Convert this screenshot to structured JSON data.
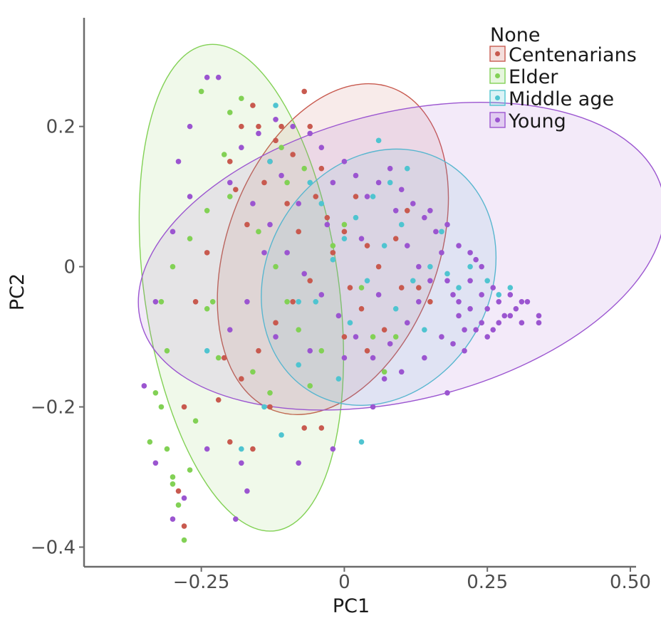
{
  "chart_data": {
    "type": "scatter",
    "xlabel": "PC1",
    "ylabel": "PC2",
    "xlim": [
      -0.455,
      0.51
    ],
    "ylim": [
      -0.428,
      0.355
    ],
    "xticks": [
      -0.25,
      0,
      0.25,
      0.5
    ],
    "xtick_labels": [
      "−0.25",
      "0",
      "0.25",
      "0.50"
    ],
    "yticks": [
      -0.4,
      -0.2,
      0,
      0.2
    ],
    "ytick_labels": [
      "−0.4",
      "−0.2",
      "0",
      "0.2"
    ],
    "grid": false,
    "legend": {
      "title": "None",
      "placement": "top-right",
      "entries": [
        "Centenarians",
        "Elder",
        "Middle age",
        "Young"
      ]
    },
    "series": [
      {
        "name": "Centenarians",
        "color": "#c85a4f",
        "ellipse": {
          "center": [
            -0.02,
            0.025
          ],
          "semi_axes": [
            0.185,
            0.245
          ],
          "angle_deg": 20
        },
        "points": [
          [
            -0.2,
            0.15
          ],
          [
            -0.18,
            0.2
          ],
          [
            -0.16,
            0.23
          ],
          [
            -0.12,
            0.18
          ],
          [
            -0.14,
            0.12
          ],
          [
            -0.1,
            0.09
          ],
          [
            -0.08,
            0.05
          ],
          [
            -0.05,
            0.1
          ],
          [
            -0.03,
            0.07
          ],
          [
            0.0,
            0.05
          ],
          [
            0.02,
            0.1
          ],
          [
            0.04,
            0.03
          ],
          [
            -0.06,
            -0.02
          ],
          [
            -0.09,
            -0.05
          ],
          [
            -0.12,
            -0.08
          ],
          [
            -0.15,
            -0.12
          ],
          [
            -0.18,
            -0.16
          ],
          [
            -0.22,
            -0.19
          ],
          [
            -0.2,
            -0.25
          ],
          [
            -0.16,
            -0.26
          ],
          [
            -0.13,
            -0.2
          ],
          [
            -0.07,
            -0.23
          ],
          [
            -0.04,
            -0.23
          ],
          [
            0.0,
            -0.1
          ],
          [
            0.03,
            -0.06
          ],
          [
            0.06,
            0.0
          ],
          [
            0.09,
            0.04
          ],
          [
            0.11,
            0.08
          ],
          [
            0.13,
            -0.03
          ],
          [
            0.15,
            -0.05
          ],
          [
            -0.24,
            0.02
          ],
          [
            -0.26,
            -0.05
          ],
          [
            -0.28,
            -0.2
          ],
          [
            -0.29,
            -0.32
          ],
          [
            -0.28,
            -0.37
          ],
          [
            -0.21,
            -0.13
          ],
          [
            -0.17,
            0.06
          ],
          [
            -0.13,
            0.15
          ],
          [
            -0.11,
            0.2
          ],
          [
            -0.09,
            0.16
          ],
          [
            -0.06,
            0.2
          ],
          [
            -0.04,
            0.14
          ],
          [
            -0.02,
            0.02
          ],
          [
            0.01,
            -0.03
          ],
          [
            0.04,
            -0.12
          ],
          [
            0.07,
            -0.09
          ],
          [
            0.1,
            -0.03
          ],
          [
            -0.07,
            0.25
          ],
          [
            -0.15,
            0.2
          ],
          [
            -0.19,
            0.11
          ]
        ]
      },
      {
        "name": "Elder",
        "color": "#82d155",
        "ellipse": {
          "center": [
            -0.18,
            -0.03
          ],
          "semi_axes": [
            0.17,
            0.35
          ],
          "angle_deg": -8
        },
        "points": [
          [
            -0.25,
            0.25
          ],
          [
            -0.2,
            0.22
          ],
          [
            -0.24,
            0.08
          ],
          [
            -0.27,
            0.04
          ],
          [
            -0.3,
            0.0
          ],
          [
            -0.32,
            -0.05
          ],
          [
            -0.31,
            -0.12
          ],
          [
            -0.33,
            -0.18
          ],
          [
            -0.32,
            -0.2
          ],
          [
            -0.31,
            -0.26
          ],
          [
            -0.3,
            -0.3
          ],
          [
            -0.29,
            -0.34
          ],
          [
            -0.28,
            -0.39
          ],
          [
            -0.27,
            -0.29
          ],
          [
            -0.26,
            -0.22
          ],
          [
            -0.24,
            -0.06
          ],
          [
            -0.22,
            -0.13
          ],
          [
            -0.2,
            0.1
          ],
          [
            -0.18,
            0.24
          ],
          [
            -0.15,
            0.05
          ],
          [
            -0.12,
            0.0
          ],
          [
            -0.1,
            -0.05
          ],
          [
            -0.08,
            -0.09
          ],
          [
            -0.06,
            -0.17
          ],
          [
            -0.04,
            -0.12
          ],
          [
            -0.02,
            0.03
          ],
          [
            0.0,
            0.06
          ],
          [
            0.03,
            -0.03
          ],
          [
            0.05,
            -0.1
          ],
          [
            0.07,
            -0.15
          ],
          [
            0.09,
            -0.1
          ],
          [
            -0.16,
            -0.15
          ],
          [
            -0.13,
            -0.18
          ],
          [
            -0.1,
            0.12
          ],
          [
            -0.07,
            0.14
          ],
          [
            -0.11,
            0.17
          ],
          [
            -0.21,
            0.16
          ],
          [
            -0.23,
            -0.05
          ],
          [
            -0.34,
            -0.25
          ],
          [
            -0.3,
            -0.31
          ]
        ]
      },
      {
        "name": "Middle age",
        "color": "#4fc4d0",
        "ellipse": {
          "center": [
            0.06,
            -0.015
          ],
          "semi_axes": [
            0.195,
            0.19
          ],
          "angle_deg": 30
        },
        "points": [
          [
            -0.24,
            -0.12
          ],
          [
            -0.18,
            -0.26
          ],
          [
            -0.14,
            -0.2
          ],
          [
            -0.11,
            -0.24
          ],
          [
            -0.08,
            -0.14
          ],
          [
            -0.05,
            -0.05
          ],
          [
            -0.02,
            0.01
          ],
          [
            0.0,
            0.04
          ],
          [
            0.02,
            0.07
          ],
          [
            0.05,
            0.1
          ],
          [
            0.07,
            0.03
          ],
          [
            0.1,
            0.06
          ],
          [
            0.12,
            -0.02
          ],
          [
            0.15,
            0.0
          ],
          [
            0.18,
            -0.01
          ],
          [
            0.2,
            -0.03
          ],
          [
            0.22,
            0.0
          ],
          [
            0.25,
            -0.02
          ],
          [
            0.27,
            -0.04
          ],
          [
            0.29,
            -0.03
          ],
          [
            0.03,
            -0.25
          ],
          [
            -0.04,
            0.09
          ],
          [
            -0.06,
            0.12
          ],
          [
            0.08,
            0.12
          ],
          [
            0.11,
            0.14
          ],
          [
            -0.08,
            -0.05
          ],
          [
            0.01,
            -0.08
          ],
          [
            0.04,
            -0.02
          ],
          [
            0.09,
            -0.06
          ],
          [
            0.14,
            -0.09
          ],
          [
            -0.12,
            0.23
          ],
          [
            -0.13,
            0.15
          ],
          [
            -0.01,
            -0.16
          ],
          [
            0.06,
            0.18
          ],
          [
            0.17,
            0.05
          ]
        ]
      },
      {
        "name": "Young",
        "color": "#9b55d0",
        "ellipse": {
          "center": [
            0.1,
            0.015
          ],
          "semi_axes": [
            0.47,
            0.205
          ],
          "angle_deg": -14
        },
        "points": [
          [
            -0.24,
            0.27
          ],
          [
            -0.22,
            0.27
          ],
          [
            -0.27,
            0.2
          ],
          [
            -0.29,
            0.15
          ],
          [
            -0.27,
            0.1
          ],
          [
            -0.3,
            0.05
          ],
          [
            -0.33,
            -0.05
          ],
          [
            -0.35,
            -0.17
          ],
          [
            -0.33,
            -0.28
          ],
          [
            -0.3,
            -0.36
          ],
          [
            -0.28,
            -0.33
          ],
          [
            -0.24,
            -0.26
          ],
          [
            -0.18,
            -0.28
          ],
          [
            -0.17,
            -0.32
          ],
          [
            -0.19,
            -0.36
          ],
          [
            -0.08,
            -0.28
          ],
          [
            -0.02,
            -0.26
          ],
          [
            0.05,
            -0.2
          ],
          [
            0.1,
            -0.15
          ],
          [
            0.14,
            -0.13
          ],
          [
            0.18,
            -0.18
          ],
          [
            0.2,
            -0.05
          ],
          [
            0.22,
            -0.02
          ],
          [
            0.23,
            0.01
          ],
          [
            0.24,
            -0.04
          ],
          [
            0.25,
            -0.06
          ],
          [
            0.26,
            -0.03
          ],
          [
            0.27,
            -0.05
          ],
          [
            0.28,
            -0.07
          ],
          [
            0.29,
            -0.04
          ],
          [
            0.3,
            -0.06
          ],
          [
            0.31,
            -0.08
          ],
          [
            0.32,
            -0.05
          ],
          [
            0.34,
            -0.07
          ],
          [
            0.34,
            -0.08
          ],
          [
            0.26,
            -0.09
          ],
          [
            0.24,
            -0.08
          ],
          [
            0.22,
            -0.06
          ],
          [
            0.21,
            -0.09
          ],
          [
            0.2,
            -0.07
          ],
          [
            0.19,
            -0.04
          ],
          [
            0.18,
            -0.02
          ],
          [
            0.17,
            0.02
          ],
          [
            0.16,
            0.05
          ],
          [
            0.14,
            0.07
          ],
          [
            0.12,
            0.09
          ],
          [
            0.1,
            0.11
          ],
          [
            0.08,
            0.14
          ],
          [
            0.06,
            0.12
          ],
          [
            0.04,
            0.1
          ],
          [
            0.02,
            0.13
          ],
          [
            0.0,
            0.15
          ],
          [
            -0.02,
            0.12
          ],
          [
            -0.04,
            0.17
          ],
          [
            -0.06,
            0.19
          ],
          [
            -0.09,
            0.2
          ],
          [
            -0.12,
            0.21
          ],
          [
            -0.15,
            0.19
          ],
          [
            -0.18,
            0.17
          ],
          [
            -0.2,
            0.12
          ],
          [
            -0.16,
            0.09
          ],
          [
            -0.13,
            0.06
          ],
          [
            -0.1,
            0.02
          ],
          [
            -0.07,
            -0.01
          ],
          [
            -0.04,
            -0.04
          ],
          [
            -0.01,
            -0.07
          ],
          [
            0.02,
            -0.1
          ],
          [
            0.05,
            -0.13
          ],
          [
            0.08,
            -0.11
          ],
          [
            0.11,
            -0.08
          ],
          [
            0.13,
            -0.05
          ],
          [
            0.15,
            -0.02
          ],
          [
            0.17,
            -0.1
          ],
          [
            0.19,
            -0.11
          ],
          [
            0.21,
            -0.12
          ],
          [
            0.23,
            -0.09
          ],
          [
            0.25,
            -0.1
          ],
          [
            0.27,
            -0.08
          ],
          [
            0.29,
            -0.07
          ],
          [
            0.31,
            -0.05
          ],
          [
            0.09,
            0.08
          ],
          [
            0.11,
            0.03
          ],
          [
            0.13,
            0.0
          ],
          [
            0.03,
            0.04
          ],
          [
            0.06,
            -0.04
          ],
          [
            -0.03,
            0.06
          ],
          [
            -0.08,
            0.09
          ],
          [
            -0.11,
            0.13
          ],
          [
            -0.14,
            0.02
          ],
          [
            -0.17,
            -0.05
          ],
          [
            -0.2,
            -0.09
          ],
          [
            -0.12,
            -0.1
          ],
          [
            -0.06,
            -0.12
          ],
          [
            0.0,
            -0.13
          ],
          [
            0.07,
            -0.16
          ],
          [
            0.15,
            0.08
          ],
          [
            0.18,
            0.06
          ],
          [
            0.2,
            0.03
          ],
          [
            0.22,
            0.02
          ],
          [
            0.24,
            0.0
          ]
        ]
      }
    ]
  }
}
